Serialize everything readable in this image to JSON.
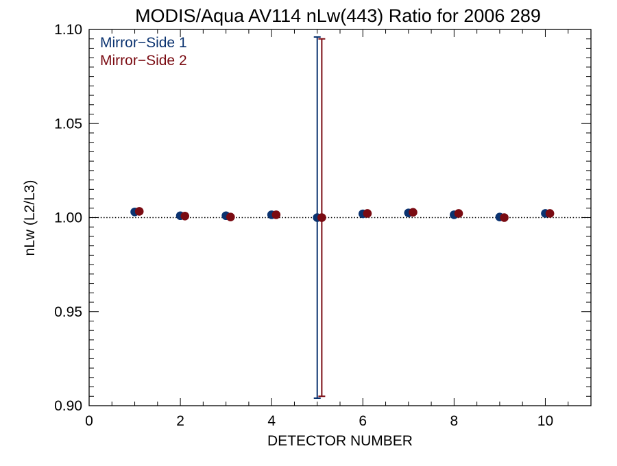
{
  "chart_data": {
    "type": "scatter",
    "title": "MODIS/Aqua AV114 nLw(443) Ratio for 2006 289",
    "xlabel": "DETECTOR NUMBER",
    "ylabel": "nLw (L2/L3)",
    "xlim": [
      0,
      11
    ],
    "ylim": [
      0.9,
      1.1
    ],
    "xticks": [
      0,
      2,
      4,
      6,
      8,
      10
    ],
    "xtick_labels": [
      "0",
      "2",
      "4",
      "6",
      "8",
      "10"
    ],
    "yticks": [
      0.9,
      0.95,
      1.0,
      1.05,
      1.1
    ],
    "ytick_labels": [
      "0.90",
      "0.95",
      "1.00",
      "1.05",
      "1.10"
    ],
    "reference_line": 1.0,
    "legend_position": "top-left",
    "series": [
      {
        "name": "Mirror−Side 1",
        "color": "#0b3370",
        "x": [
          1,
          2,
          3,
          4,
          5,
          6,
          7,
          8,
          9,
          10
        ],
        "y": [
          1.003,
          1.001,
          1.001,
          1.0015,
          1.0,
          1.002,
          1.0025,
          1.0015,
          1.0003,
          1.0022
        ],
        "error_bars": [
          {
            "x": 5,
            "low": 0.904,
            "high": 1.096
          }
        ]
      },
      {
        "name": "Mirror−Side 2",
        "color": "#7a0b12",
        "x": [
          1.1,
          2.1,
          3.1,
          4.1,
          5.1,
          6.1,
          7.1,
          8.1,
          9.1,
          10.1
        ],
        "y": [
          1.0033,
          1.0008,
          1.0003,
          1.0015,
          1.0,
          1.0022,
          1.0028,
          1.0022,
          1.0,
          1.0022
        ],
        "error_bars": [
          {
            "x": 5.1,
            "low": 0.905,
            "high": 1.095
          }
        ]
      }
    ]
  }
}
